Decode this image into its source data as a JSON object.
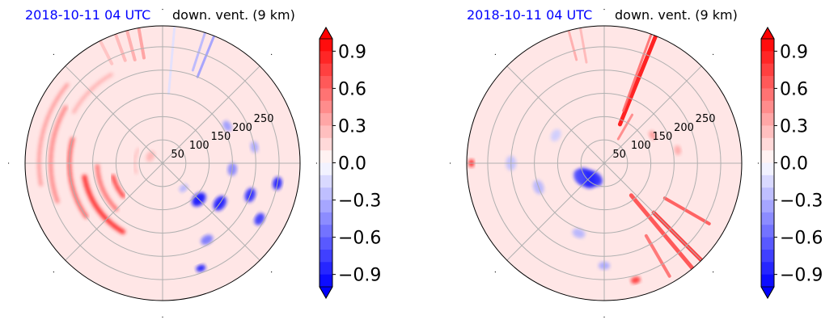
{
  "chart_data": [
    {
      "type": "heatmap",
      "projection": "polar",
      "title_left": "2018-10-11 04 UTC",
      "title_right": "down. vent. (9 km)",
      "radial_ticks": [
        50,
        100,
        150,
        200,
        250
      ],
      "rlim": [
        0,
        295
      ],
      "grid": true,
      "colormap": "bwr",
      "colorbar": {
        "ticks": [
          "0.9",
          "0.6",
          "0.3",
          "0.0",
          "−0.3",
          "−0.6",
          "−0.9"
        ],
        "range": [
          -1.0,
          1.0
        ],
        "extend": "both"
      },
      "background_value": 0.05,
      "features": [
        {
          "kind": "ray",
          "az": 350,
          "r0": 230,
          "r1": 295,
          "value": 0.4,
          "w": 4
        },
        {
          "kind": "ray",
          "az": 345,
          "r0": 230,
          "r1": 295,
          "value": 0.35,
          "w": 4
        },
        {
          "kind": "ray",
          "az": 340,
          "r0": 235,
          "r1": 295,
          "value": 0.3,
          "w": 4
        },
        {
          "kind": "ray",
          "az": 333,
          "r0": 240,
          "r1": 295,
          "value": 0.25,
          "w": 4
        },
        {
          "kind": "ray",
          "az": 18,
          "r0": 210,
          "r1": 295,
          "value": -0.3,
          "w": 3
        },
        {
          "kind": "ray",
          "az": 22,
          "r0": 200,
          "r1": 295,
          "value": -0.4,
          "w": 3
        },
        {
          "kind": "ray",
          "az": 5,
          "r0": 150,
          "r1": 295,
          "value": -0.12,
          "w": 3
        },
        {
          "kind": "arc",
          "r": 200,
          "a0": 235,
          "a1": 285,
          "value": 0.7,
          "w": 5
        },
        {
          "kind": "arc",
          "r": 170,
          "a0": 210,
          "a1": 260,
          "value": 0.85,
          "w": 6
        },
        {
          "kind": "arc",
          "r": 140,
          "a0": 225,
          "a1": 268,
          "value": 0.6,
          "w": 5
        },
        {
          "kind": "arc",
          "r": 110,
          "a0": 230,
          "a1": 255,
          "value": 0.8,
          "w": 5
        },
        {
          "kind": "arc",
          "r": 240,
          "a0": 250,
          "a1": 300,
          "value": 0.5,
          "w": 5
        },
        {
          "kind": "arc",
          "r": 265,
          "a0": 260,
          "a1": 310,
          "value": 0.45,
          "w": 4
        },
        {
          "kind": "arc",
          "r": 220,
          "a0": 300,
          "a1": 330,
          "value": 0.35,
          "w": 4
        },
        {
          "kind": "arc",
          "r": 60,
          "a0": 250,
          "a1": 300,
          "value": 0.3,
          "w": 3
        },
        {
          "kind": "blob",
          "az": 135,
          "r": 110,
          "value": -0.95,
          "s": 10
        },
        {
          "kind": "blob",
          "az": 125,
          "r": 150,
          "value": -0.9,
          "s": 10
        },
        {
          "kind": "blob",
          "az": 110,
          "r": 200,
          "value": -0.85,
          "s": 9
        },
        {
          "kind": "blob",
          "az": 100,
          "r": 250,
          "value": -0.9,
          "s": 8
        },
        {
          "kind": "blob",
          "az": 120,
          "r": 240,
          "value": -0.8,
          "s": 8
        },
        {
          "kind": "blob",
          "az": 95,
          "r": 150,
          "value": -0.5,
          "s": 8
        },
        {
          "kind": "blob",
          "az": 150,
          "r": 190,
          "value": -0.55,
          "s": 8
        },
        {
          "kind": "blob",
          "az": 60,
          "r": 160,
          "value": -0.4,
          "s": 7
        },
        {
          "kind": "blob",
          "az": 80,
          "r": 200,
          "value": -0.35,
          "s": 7
        },
        {
          "kind": "blob",
          "az": 160,
          "r": 240,
          "value": -0.9,
          "s": 6
        },
        {
          "kind": "blob",
          "az": 140,
          "r": 70,
          "value": -0.3,
          "s": 6
        },
        {
          "kind": "blob",
          "az": 300,
          "r": 30,
          "value": 0.3,
          "s": 7
        }
      ]
    },
    {
      "type": "heatmap",
      "projection": "polar",
      "title_left": "2018-10-11 04 UTC",
      "title_right": "down. vent. (9 km)",
      "radial_ticks": [
        50,
        100,
        150,
        200,
        250
      ],
      "rlim": [
        0,
        295
      ],
      "grid": true,
      "colormap": "bwr",
      "colorbar": {
        "ticks": [
          "0.9",
          "0.6",
          "0.3",
          "0.0",
          "−0.3",
          "−0.6",
          "−0.9"
        ],
        "range": [
          -1.0,
          1.0
        ],
        "extend": "both"
      },
      "background_value": 0.07,
      "features": [
        {
          "kind": "ray",
          "az": 22,
          "r0": 90,
          "r1": 295,
          "value": 1.0,
          "w": 5
        },
        {
          "kind": "ray",
          "az": 20,
          "r0": 120,
          "r1": 295,
          "value": 0.6,
          "w": 3
        },
        {
          "kind": "ray",
          "az": 345,
          "r0": 230,
          "r1": 295,
          "value": 0.35,
          "w": 3
        },
        {
          "kind": "ray",
          "az": 350,
          "r0": 220,
          "r1": 295,
          "value": 0.3,
          "w": 3
        },
        {
          "kind": "ray",
          "az": 140,
          "r0": 90,
          "r1": 295,
          "value": 0.75,
          "w": 5
        },
        {
          "kind": "ray",
          "az": 135,
          "r0": 150,
          "r1": 295,
          "value": 0.85,
          "w": 5
        },
        {
          "kind": "ray",
          "az": 150,
          "r0": 180,
          "r1": 280,
          "value": 0.6,
          "w": 4
        },
        {
          "kind": "ray",
          "az": 120,
          "r0": 150,
          "r1": 260,
          "value": 0.7,
          "w": 4
        },
        {
          "kind": "ray",
          "az": 30,
          "r0": 60,
          "r1": 120,
          "value": 0.5,
          "w": 3
        },
        {
          "kind": "blob",
          "az": 230,
          "r": 50,
          "value": -0.9,
          "s": 14
        },
        {
          "kind": "blob",
          "az": 215,
          "r": 40,
          "value": -0.85,
          "s": 12
        },
        {
          "kind": "blob",
          "az": 240,
          "r": 60,
          "value": -0.7,
          "s": 10
        },
        {
          "kind": "blob",
          "az": 250,
          "r": 150,
          "value": -0.3,
          "s": 9
        },
        {
          "kind": "blob",
          "az": 270,
          "r": 200,
          "value": -0.25,
          "s": 9
        },
        {
          "kind": "blob",
          "az": 300,
          "r": 120,
          "value": -0.2,
          "s": 8
        },
        {
          "kind": "blob",
          "az": 200,
          "r": 160,
          "value": -0.3,
          "s": 8
        },
        {
          "kind": "blob",
          "az": 180,
          "r": 220,
          "value": -0.35,
          "s": 7
        },
        {
          "kind": "blob",
          "az": 165,
          "r": 260,
          "value": 0.8,
          "s": 6
        },
        {
          "kind": "blob",
          "az": 60,
          "r": 120,
          "value": 0.4,
          "s": 6
        },
        {
          "kind": "blob",
          "az": 80,
          "r": 160,
          "value": 0.35,
          "s": 6
        },
        {
          "kind": "blob",
          "az": 270,
          "r": 285,
          "value": 0.9,
          "s": 5
        }
      ]
    }
  ]
}
